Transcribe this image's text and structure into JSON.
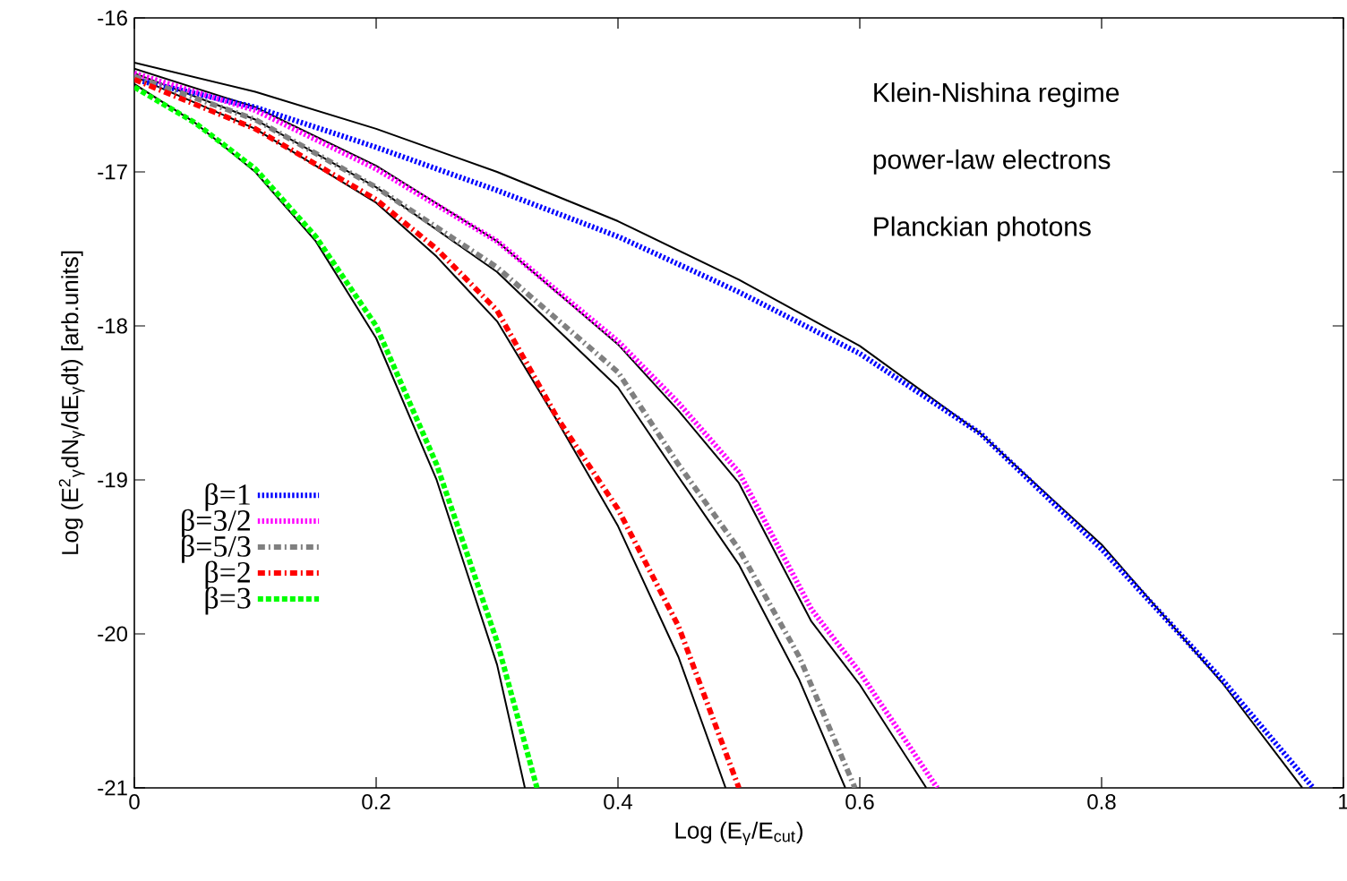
{
  "chart_data": {
    "type": "line",
    "xlabel": "Log (E$_{γ}$/E$_{cut}$)",
    "ylabel": "Log (E$^{2}$$_{γ}$dN$_{γ}$/dE$_{γ}$dt) [arb.units]",
    "xlim": [
      0,
      1
    ],
    "ylim": [
      -21,
      -16
    ],
    "xticks": [
      0,
      0.2,
      0.4,
      0.6,
      0.8,
      1
    ],
    "yticks": [
      -21,
      -20,
      -19,
      -18,
      -17,
      -16
    ],
    "grid": false,
    "legend": "left",
    "annotations": [
      "Klein-Nishina regime",
      "power-law electrons",
      "Planckian photons"
    ],
    "series": [
      {
        "name": "β=1",
        "color": "#0000ff",
        "line_style": "dotted",
        "x": [
          0,
          0.1,
          0.2,
          0.3,
          0.4,
          0.5,
          0.6,
          0.7,
          0.8,
          0.9,
          0.975
        ],
        "values": [
          -16.4,
          -16.58,
          -16.84,
          -17.12,
          -17.42,
          -17.78,
          -18.18,
          -18.7,
          -19.45,
          -20.3,
          -21
        ]
      },
      {
        "name": "β=3/2",
        "color": "#ff00ff",
        "line_style": "dotted",
        "x": [
          0,
          0.1,
          0.2,
          0.3,
          0.4,
          0.45,
          0.5,
          0.56,
          0.6,
          0.664
        ],
        "values": [
          -16.36,
          -16.6,
          -16.98,
          -17.45,
          -18.1,
          -18.5,
          -18.95,
          -19.84,
          -20.25,
          -21
        ]
      },
      {
        "name": "β=5/3",
        "color": "#808080",
        "line_style": "dashdotted",
        "x": [
          0,
          0.1,
          0.2,
          0.3,
          0.4,
          0.45,
          0.5,
          0.55,
          0.596
        ],
        "values": [
          -16.38,
          -16.66,
          -17.1,
          -17.62,
          -18.3,
          -18.9,
          -19.45,
          -20.15,
          -21
        ]
      },
      {
        "name": "β=2",
        "color": "#ff0000",
        "line_style": "dashdotted",
        "x": [
          0,
          0.1,
          0.2,
          0.25,
          0.3,
          0.35,
          0.4,
          0.45,
          0.5
        ],
        "values": [
          -16.4,
          -16.72,
          -17.18,
          -17.5,
          -17.9,
          -18.6,
          -19.19,
          -19.95,
          -21
        ]
      },
      {
        "name": "β=3",
        "color": "#00ff00",
        "line_style": "dashed",
        "x": [
          0,
          0.05,
          0.1,
          0.15,
          0.2,
          0.25,
          0.3,
          0.333
        ],
        "values": [
          -16.45,
          -16.68,
          -16.98,
          -17.42,
          -18.0,
          -18.9,
          -20.05,
          -21
        ]
      },
      {
        "color": "#000000",
        "line_style": "solid",
        "x": [
          0,
          0.1,
          0.2,
          0.3,
          0.4,
          0.5,
          0.6,
          0.7,
          0.8,
          0.9,
          0.966
        ],
        "values": [
          -16.29,
          -16.48,
          -16.72,
          -17.0,
          -17.32,
          -17.7,
          -18.13,
          -18.7,
          -19.42,
          -20.32,
          -21
        ]
      },
      {
        "color": "#000000",
        "line_style": "solid",
        "x": [
          0,
          0.1,
          0.2,
          0.3,
          0.4,
          0.45,
          0.5,
          0.56,
          0.6,
          0.655
        ],
        "values": [
          -16.33,
          -16.58,
          -16.96,
          -17.45,
          -18.12,
          -18.55,
          -19.02,
          -19.92,
          -20.33,
          -21
        ]
      },
      {
        "color": "#000000",
        "line_style": "solid",
        "x": [
          0,
          0.1,
          0.2,
          0.3,
          0.4,
          0.45,
          0.5,
          0.55,
          0.588
        ],
        "values": [
          -16.36,
          -16.66,
          -17.1,
          -17.65,
          -18.4,
          -18.98,
          -19.55,
          -20.3,
          -21
        ]
      },
      {
        "color": "#000000",
        "line_style": "solid",
        "x": [
          0,
          0.1,
          0.2,
          0.25,
          0.3,
          0.35,
          0.4,
          0.45,
          0.489
        ],
        "values": [
          -16.38,
          -16.72,
          -17.2,
          -17.55,
          -17.97,
          -18.62,
          -19.3,
          -20.15,
          -21
        ]
      },
      {
        "color": "#000000",
        "line_style": "solid",
        "x": [
          0,
          0.05,
          0.1,
          0.15,
          0.2,
          0.25,
          0.3,
          0.323
        ],
        "values": [
          -16.43,
          -16.68,
          -17.0,
          -17.45,
          -18.08,
          -19.0,
          -20.2,
          -21
        ]
      }
    ]
  }
}
